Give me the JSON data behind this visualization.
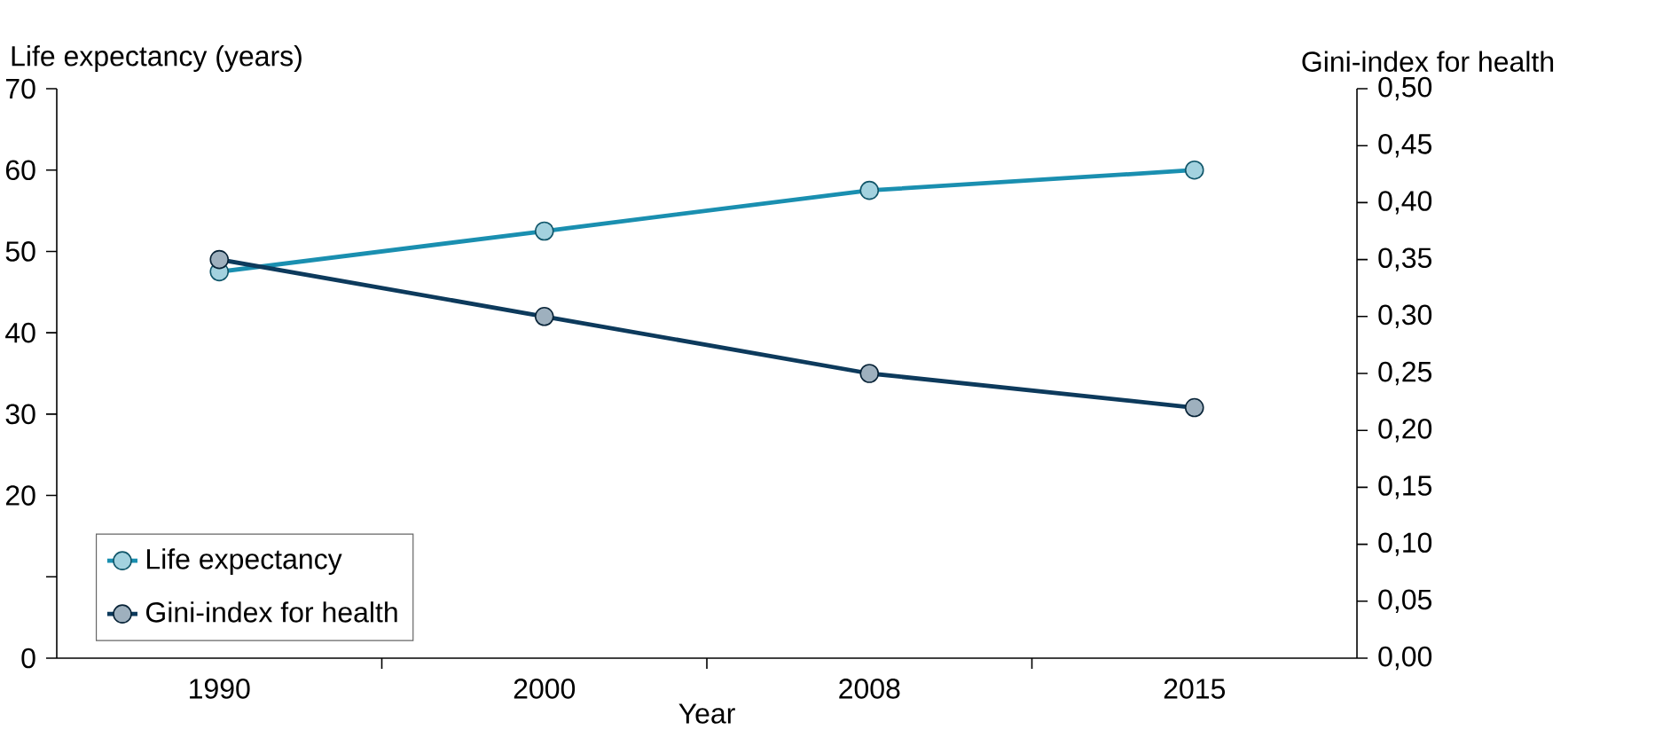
{
  "chart_data": {
    "type": "line",
    "xlabel": "Year",
    "ylabel": "Life expectancy (years)",
    "y2label": "Gini-index for health",
    "categories": [
      "1990",
      "2000",
      "2008",
      "2015"
    ],
    "series": [
      {
        "name": "Life expectancy",
        "color": "#1a8fb0",
        "values": [
          47.5,
          52.5,
          57.5,
          60
        ],
        "axis": "y"
      },
      {
        "name": "Gini-index for health",
        "color": "#0d3a5c",
        "values": [
          0.35,
          0.3,
          0.25,
          0.22
        ],
        "axis": "y2"
      }
    ],
    "ylim": [
      0,
      70
    ],
    "yticks": [
      0,
      {
        "value": 10,
        "label": null
      },
      20,
      30,
      40,
      50,
      60,
      70
    ],
    "y2lim": [
      0,
      0.5
    ],
    "y2ticks": [
      {
        "value": 0,
        "label": "0,00"
      },
      {
        "value": 0.05,
        "label": "0,05"
      },
      {
        "value": 0.1,
        "label": "0,10"
      },
      {
        "value": 0.15,
        "label": "0,15"
      },
      {
        "value": 0.2,
        "label": "0,20"
      },
      {
        "value": 0.25,
        "label": "0,25"
      },
      {
        "value": 0.3,
        "label": "0,30"
      },
      {
        "value": 0.35,
        "label": "0,35"
      },
      {
        "value": 0.4,
        "label": "0,40"
      },
      {
        "value": 0.45,
        "label": "0,45"
      },
      {
        "value": 0.5,
        "label": "0,50"
      }
    ],
    "marker": "circle",
    "line_style": "solid",
    "legend": "bottom left",
    "grid": false
  }
}
